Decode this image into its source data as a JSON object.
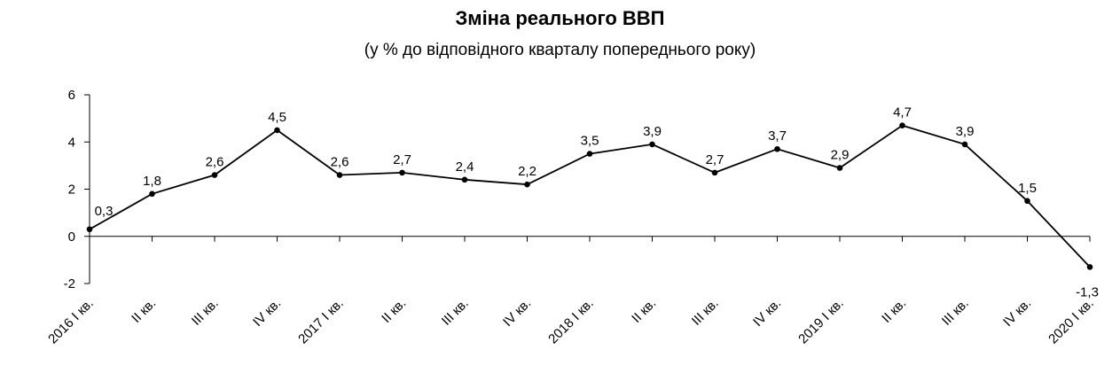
{
  "chart_data": {
    "type": "line",
    "title": "Зміна реального ВВП",
    "subtitle": "(у % до відповідного кварталу попереднього року)",
    "xlabel": "",
    "ylabel": "",
    "categories": [
      "2016 I кв.",
      "II кв.",
      "III кв.",
      "IV кв.",
      "2017 I кв.",
      "II кв.",
      "III кв.",
      "IV кв.",
      "2018 I кв.",
      "II кв.",
      "III кв.",
      "IV кв.",
      "2019 I кв.",
      "II кв.",
      "III кв.",
      "IV кв.",
      "2020 I кв."
    ],
    "series": [
      {
        "values": [
          0.3,
          1.8,
          2.6,
          4.5,
          2.6,
          2.7,
          2.4,
          2.2,
          3.5,
          3.9,
          2.7,
          3.7,
          2.9,
          4.7,
          3.9,
          1.5,
          -1.3
        ],
        "labels": [
          "0,3",
          "1,8",
          "2,6",
          "4,5",
          "2,6",
          "2,7",
          "2,4",
          "2,2",
          "3,5",
          "3,9",
          "2,7",
          "3,7",
          "2,9",
          "4,7",
          "3,9",
          "1,5",
          "-1,3"
        ],
        "color": "#000000"
      }
    ],
    "ylim": [
      -2,
      6
    ],
    "yticks": [
      -2,
      0,
      2,
      4,
      6
    ],
    "grid": false,
    "legend": "none"
  }
}
